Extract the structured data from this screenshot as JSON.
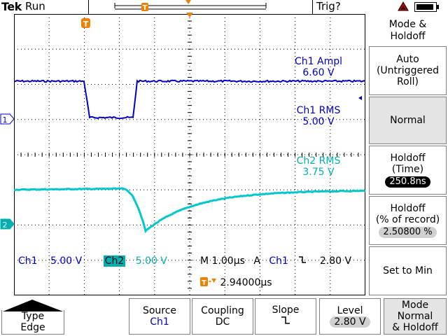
{
  "header": {
    "brand": "Tek",
    "run_state": "Run",
    "trigger_status": "Trig?"
  },
  "readouts": {
    "ch1_ampl_label": "Ch1 Ampl",
    "ch1_ampl_value": "6.60 V",
    "ch1_rms_label": "Ch1 RMS",
    "ch1_rms_value": "5.00 V",
    "ch2_rms_label": "Ch2 RMS",
    "ch2_rms_value": "3.75 V"
  },
  "status_line": {
    "ch1_label": "Ch1",
    "ch1_scale": "5.00 V",
    "ch2_label": "Ch2",
    "ch2_scale": "5.00 V",
    "timebase": "M 1.00µs",
    "trig_mode": "A",
    "trig_source": "Ch1",
    "trig_level": "2.80 V",
    "trig_position": "2.94000µs"
  },
  "markers": {
    "trigger_marker": "T",
    "ch1_marker": "1",
    "ch2_marker": "2"
  },
  "side_menu": {
    "title_line1": "Mode &",
    "title_line2": "Holdoff",
    "items": [
      {
        "line1": "Auto",
        "line2": "(Untriggered",
        "line3": "Roll)"
      },
      {
        "line1": "Normal"
      },
      {
        "line1": "Holdoff",
        "line2": "(Time)",
        "value": "250.8ns"
      },
      {
        "line1": "Holdoff",
        "line2": "(% of record)",
        "value": "2.50800 %"
      },
      {
        "line1": "Set to Min"
      }
    ]
  },
  "bottom_menu": {
    "type_label": "Type",
    "type_value": "Edge",
    "source_label": "Source",
    "source_value": "Ch1",
    "coupling_label": "Coupling",
    "coupling_value": "DC",
    "slope_label": "Slope",
    "slope_value": "⤵",
    "level_label": "Level",
    "level_value": "2.80 V",
    "mode_label": "Mode",
    "mode_value1": "Normal",
    "mode_value2": "& Holdoff"
  },
  "colors": {
    "ch1": "#0000c8",
    "ch2": "#00b0b0",
    "trigger": "#f08000",
    "grid": "#000000"
  }
}
